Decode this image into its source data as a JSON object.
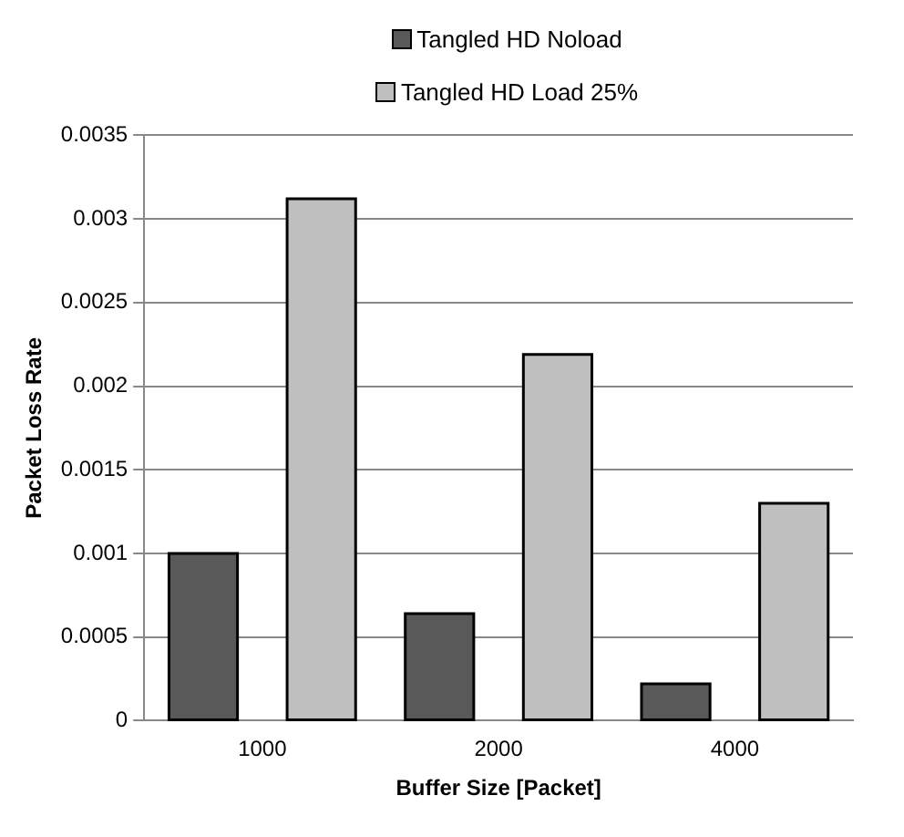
{
  "chart_data": {
    "type": "bar",
    "xlabel": "Buffer Size [Packet]",
    "ylabel": "Packet Loss Rate",
    "categories": [
      "1000",
      "2000",
      "4000"
    ],
    "series": [
      {
        "name": "Tangled HD Noload",
        "color": "#595959",
        "values": [
          0.001,
          0.00064,
          0.00022
        ]
      },
      {
        "name": "Tangled HD Load 25%",
        "color": "#bfbfbf",
        "values": [
          0.00312,
          0.00219,
          0.0013
        ]
      }
    ],
    "ylim": [
      0,
      0.0035
    ],
    "yticks": [
      0,
      0.0005,
      0.001,
      0.0015,
      0.002,
      0.0025,
      0.003,
      0.0035
    ],
    "grid": "y",
    "legend": "top"
  }
}
